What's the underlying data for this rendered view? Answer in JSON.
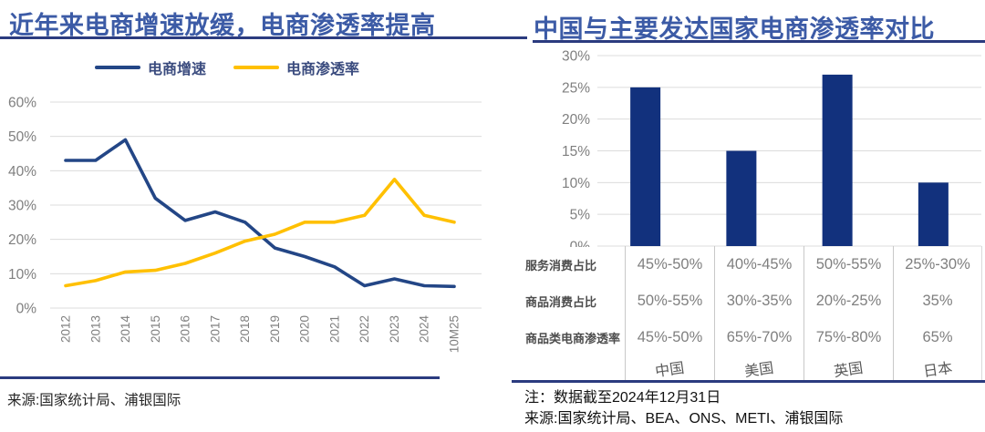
{
  "left_panel": {
    "title": "近年来电商增速放缓，电商渗透率提高",
    "source_note": "来源:国家统计局、浦银国际"
  },
  "right_panel": {
    "title": "中国与主要发达国家电商渗透率对比",
    "note_line1": "注：数据截至2024年12月31日",
    "note_line2": "来源:国家统计局、BEA、ONS、METI、浦银国际"
  },
  "colors": {
    "title_blue": "#3c5ba6",
    "rule_navy": "#2b3b7f",
    "grid_gray": "#dcdcdc",
    "axis_label_gray": "#7f7f7f",
    "bar_navy": "#12317d",
    "line_blue": "#234686",
    "line_yellow": "#ffc000"
  },
  "chart_data": [
    {
      "id": "ecommerce-growth-vs-penetration",
      "type": "line",
      "title": "近年来电商增速放缓，电商渗透率提高",
      "categories": [
        "2012",
        "2013",
        "2014",
        "2015",
        "2016",
        "2017",
        "2018",
        "2019",
        "2020",
        "2021",
        "2022",
        "2023",
        "2024",
        "10M25"
      ],
      "series": [
        {
          "name": "电商增速",
          "color": "#234686",
          "values": [
            43,
            43,
            49,
            32,
            25.5,
            28,
            25,
            17.5,
            15,
            12,
            6.5,
            8.5,
            6.5,
            6.3
          ]
        },
        {
          "name": "电商渗透率",
          "color": "#ffc000",
          "values": [
            6.5,
            8,
            10.5,
            11,
            13,
            16,
            19.5,
            21.5,
            25,
            25,
            27,
            37.5,
            27,
            25
          ]
        }
      ],
      "ylim": [
        0,
        60
      ],
      "ytick_step": 10,
      "ytick_suffix": "%",
      "grid": true,
      "legend_position": "top"
    },
    {
      "id": "country-ecommerce-penetration",
      "type": "bar",
      "title": "中国与主要发达国家电商渗透率对比",
      "categories": [
        "中国",
        "美国",
        "英国",
        "日本"
      ],
      "values": [
        25,
        15,
        27,
        10
      ],
      "ylim": [
        0,
        30
      ],
      "ytick_step": 5,
      "ytick_suffix": "%",
      "grid": true,
      "bar_color": "#12317d",
      "table": {
        "rows": [
          {
            "label": "服务消费占比",
            "values": [
              "45%-50%",
              "40%-45%",
              "50%-55%",
              "25%-30%"
            ]
          },
          {
            "label": "商品消费占比",
            "values": [
              "50%-55%",
              "30%-35%",
              "20%-25%",
              "35%"
            ]
          },
          {
            "label": "商品类电商渗透率",
            "values": [
              "45%-50%",
              "65%-70%",
              "75%-80%",
              "65%"
            ]
          }
        ]
      }
    }
  ]
}
